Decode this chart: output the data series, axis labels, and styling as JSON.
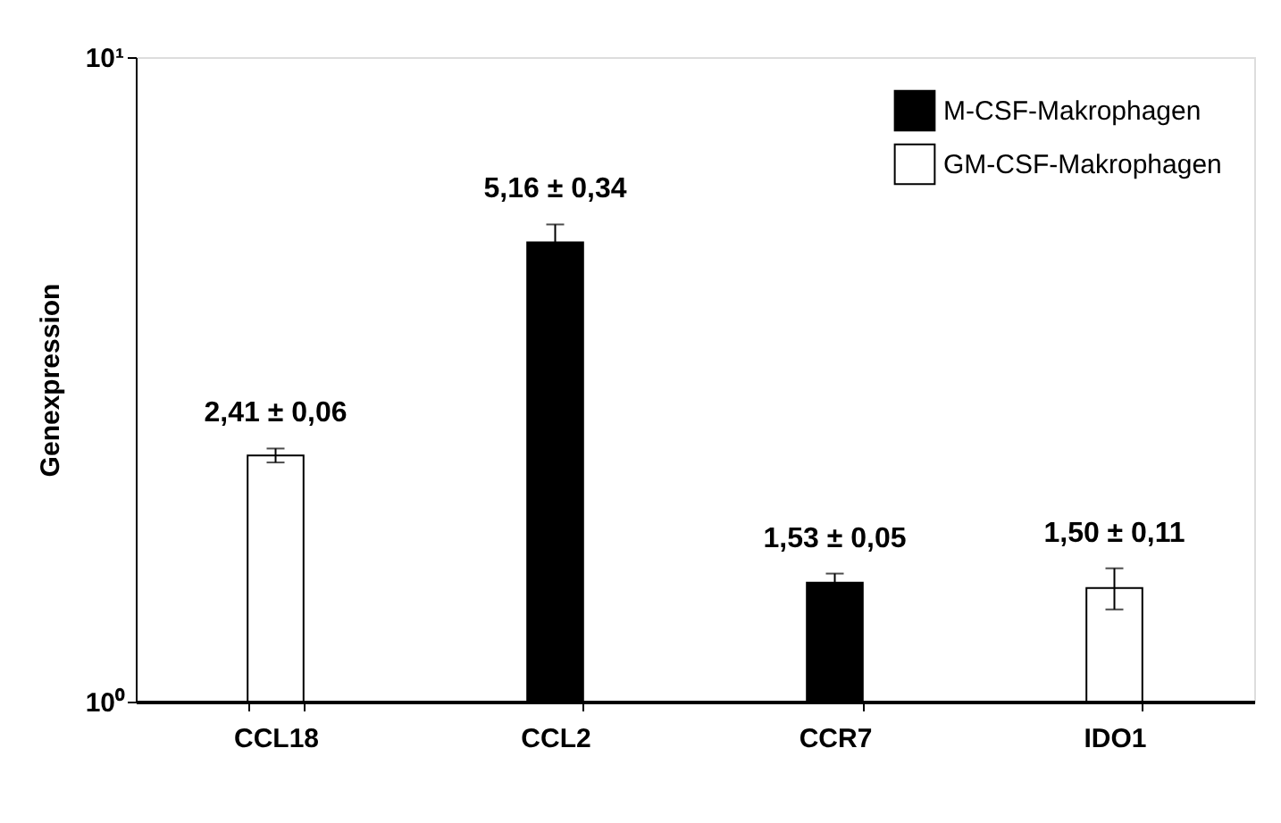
{
  "chart_data": {
    "type": "bar",
    "ylabel": "Genexpression",
    "categories": [
      "CCL18",
      "CCL2",
      "CCR7",
      "IDO1"
    ],
    "series": [
      {
        "name": "M-CSF-Makrophagen",
        "color": "#000000",
        "values": [
          null,
          5.16,
          1.53,
          null
        ],
        "errors": [
          null,
          0.34,
          0.05,
          null
        ],
        "value_labels": [
          null,
          "5,16 ± 0,34",
          "1,53 ± 0,05",
          null
        ]
      },
      {
        "name": "GM-CSF-Makrophagen",
        "color": "#ffffff",
        "values": [
          2.41,
          null,
          null,
          1.5
        ],
        "errors": [
          0.06,
          null,
          null,
          0.11
        ],
        "value_labels": [
          "2,41 ± 0,06",
          null,
          null,
          "1,50 ± 0,11"
        ]
      }
    ],
    "log": "y",
    "ylim": [
      1,
      10
    ],
    "yticks": [
      {
        "value": 1,
        "label": "10⁰"
      },
      {
        "value": 10,
        "label": "10¹"
      }
    ],
    "grid": false,
    "legend": "top right"
  }
}
